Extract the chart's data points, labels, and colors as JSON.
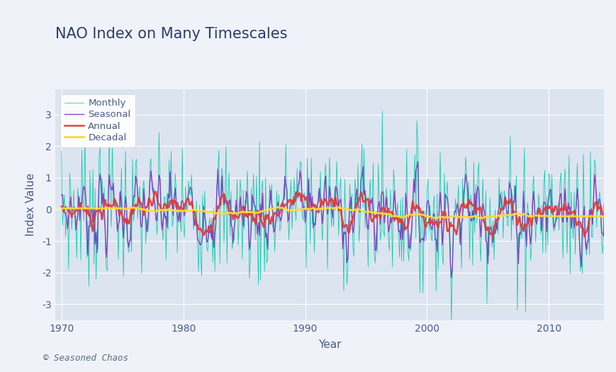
{
  "title": "NAO Index on Many Timescales",
  "xlabel": "Year",
  "ylabel": "Index Value",
  "xlim": [
    1969.5,
    2014.5
  ],
  "ylim": [
    -3.5,
    3.8
  ],
  "yticks": [
    -3,
    -2,
    -1,
    0,
    1,
    2,
    3
  ],
  "xticks": [
    1970,
    1980,
    1990,
    2000,
    2010
  ],
  "outer_bg": "#f0f2fa",
  "plot_bg_color": "#dce4f0",
  "grid_color": "#ffffff",
  "monthly_color": "#00c9a7",
  "seasonal_color": "#7b2fbe",
  "annual_color": "#e53935",
  "decadal_color": "#fdd835",
  "title_color": "#2c3e6b",
  "axis_color": "#4a5a8a",
  "title_fontsize": 15,
  "label_fontsize": 11,
  "tick_fontsize": 10,
  "credit_text": "© Seasoned Chaos",
  "credit_fontsize": 9,
  "credit_color": "#546e7a",
  "start_year": 1970,
  "n_months": 540
}
